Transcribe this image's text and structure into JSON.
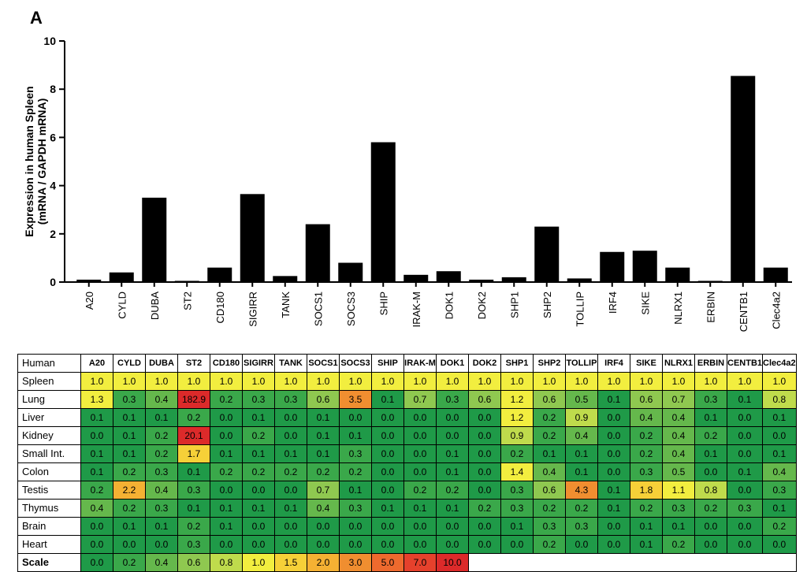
{
  "panel_label": "A",
  "chart_data": {
    "type": "bar",
    "title": "",
    "xlabel": "",
    "ylabel": "Expression in human Spleen",
    "ylabel2": "(mRNA / GAPDH mRNA)",
    "ylim": [
      0,
      10
    ],
    "yticks": [
      0,
      2,
      4,
      6,
      8,
      10
    ],
    "categories": [
      "A20",
      "CYLD",
      "DUBA",
      "ST2",
      "CD180",
      "SIGIRR",
      "TANK",
      "SOCS1",
      "SOCS3",
      "SHIP",
      "IRAK-M",
      "DOK1",
      "DOK2",
      "SHP1",
      "SHP2",
      "TOLLIP",
      "IRF4",
      "SIKE",
      "NLRX1",
      "ERBIN",
      "CENTB1",
      "Clec4a2"
    ],
    "values": [
      0.1,
      0.4,
      3.5,
      0.05,
      0.6,
      3.65,
      0.25,
      2.4,
      0.8,
      5.8,
      0.3,
      0.45,
      0.1,
      0.2,
      2.3,
      0.15,
      1.25,
      1.3,
      0.6,
      0.05,
      8.55,
      0.6
    ],
    "bar_color": "#000000"
  },
  "table": {
    "corner": "Human",
    "columns": [
      "A20",
      "CYLD",
      "DUBA",
      "ST2",
      "CD180",
      "SIGIRR",
      "TANK",
      "SOCS1",
      "SOCS3",
      "SHIP",
      "IRAK-M",
      "DOK1",
      "DOK2",
      "SHP1",
      "SHP2",
      "TOLLIP",
      "IRF4",
      "SIKE",
      "NLRX1",
      "ERBIN",
      "CENTB1",
      "Clec4a2"
    ],
    "rows": [
      {
        "label": "Spleen",
        "values": [
          "1.0",
          "1.0",
          "1.0",
          "1.0",
          "1.0",
          "1.0",
          "1.0",
          "1.0",
          "1.0",
          "1.0",
          "1.0",
          "1.0",
          "1.0",
          "1.0",
          "1.0",
          "1.0",
          "1.0",
          "1.0",
          "1.0",
          "1.0",
          "1.0",
          "1.0"
        ]
      },
      {
        "label": "Lung",
        "values": [
          "1.3",
          "0.3",
          "0.4",
          "182.9",
          "0.2",
          "0.3",
          "0.3",
          "0.6",
          "3.5",
          "0.1",
          "0.7",
          "0.3",
          "0.6",
          "1.2",
          "0.6",
          "0.5",
          "0.1",
          "0.6",
          "0.7",
          "0.3",
          "0.1",
          "0.8"
        ]
      },
      {
        "label": "Liver",
        "values": [
          "0.1",
          "0.1",
          "0.1",
          "0.2",
          "0.0",
          "0.1",
          "0.0",
          "0.1",
          "0.0",
          "0.0",
          "0.0",
          "0.0",
          "0.0",
          "1.2",
          "0.2",
          "0.9",
          "0.0",
          "0.4",
          "0.4",
          "0.1",
          "0.0",
          "0.1"
        ]
      },
      {
        "label": "Kidney",
        "values": [
          "0.0",
          "0.1",
          "0.2",
          "20.1",
          "0.0",
          "0.2",
          "0.0",
          "0.1",
          "0.1",
          "0.0",
          "0.0",
          "0.0",
          "0.0",
          "0.9",
          "0.2",
          "0.4",
          "0.0",
          "0.2",
          "0.4",
          "0.2",
          "0.0",
          "0.0"
        ]
      },
      {
        "label": "Small Int.",
        "values": [
          "0.1",
          "0.1",
          "0.2",
          "1.7",
          "0.1",
          "0.1",
          "0.1",
          "0.1",
          "0.3",
          "0.0",
          "0.0",
          "0.1",
          "0.0",
          "0.2",
          "0.1",
          "0.1",
          "0.0",
          "0.2",
          "0.4",
          "0.1",
          "0.0",
          "0.1"
        ]
      },
      {
        "label": "Colon",
        "values": [
          "0.1",
          "0.2",
          "0.3",
          "0.1",
          "0.2",
          "0.2",
          "0.2",
          "0.2",
          "0.2",
          "0.0",
          "0.0",
          "0.1",
          "0.0",
          "1.4",
          "0.4",
          "0.1",
          "0.0",
          "0.3",
          "0.5",
          "0.0",
          "0.1",
          "0.4"
        ]
      },
      {
        "label": "Testis",
        "values": [
          "0.2",
          "2.2",
          "0.4",
          "0.3",
          "0.0",
          "0.0",
          "0.0",
          "0.7",
          "0.1",
          "0.0",
          "0.2",
          "0.2",
          "0.0",
          "0.3",
          "0.6",
          "4.3",
          "0.1",
          "1.8",
          "1.1",
          "0.8",
          "0.0",
          "0.3"
        ]
      },
      {
        "label": "Thymus",
        "values": [
          "0.4",
          "0.2",
          "0.3",
          "0.1",
          "0.1",
          "0.1",
          "0.1",
          "0.4",
          "0.3",
          "0.1",
          "0.1",
          "0.1",
          "0.2",
          "0.3",
          "0.2",
          "0.2",
          "0.1",
          "0.2",
          "0.3",
          "0.2",
          "0.3",
          "0.1"
        ]
      },
      {
        "label": "Brain",
        "values": [
          "0.0",
          "0.1",
          "0.1",
          "0.2",
          "0.1",
          "0.0",
          "0.0",
          "0.0",
          "0.0",
          "0.0",
          "0.0",
          "0.0",
          "0.0",
          "0.1",
          "0.3",
          "0.3",
          "0.0",
          "0.1",
          "0.1",
          "0.0",
          "0.0",
          "0.2"
        ]
      },
      {
        "label": "Heart",
        "values": [
          "0.0",
          "0.0",
          "0.0",
          "0.3",
          "0.0",
          "0.0",
          "0.0",
          "0.0",
          "0.0",
          "0.0",
          "0.0",
          "0.0",
          "0.0",
          "0.0",
          "0.2",
          "0.0",
          "0.0",
          "0.1",
          "0.2",
          "0.0",
          "0.0",
          "0.0"
        ]
      }
    ],
    "scale": {
      "label": "Scale",
      "values": [
        "0.0",
        "0.2",
        "0.4",
        "0.6",
        "0.8",
        "1.0",
        "1.5",
        "2.0",
        "3.0",
        "5.0",
        "7.0",
        "10.0"
      ]
    }
  },
  "colors": {
    "cells": [
      "#1f9a48",
      "#3aa84a",
      "#65b84c",
      "#8fc850",
      "#bfdb4c",
      "#f2ee3f",
      "#f6d038",
      "#f5b133",
      "#f08e30",
      "#ee6a2e",
      "#e5412c",
      "#dc2a2a"
    ]
  }
}
